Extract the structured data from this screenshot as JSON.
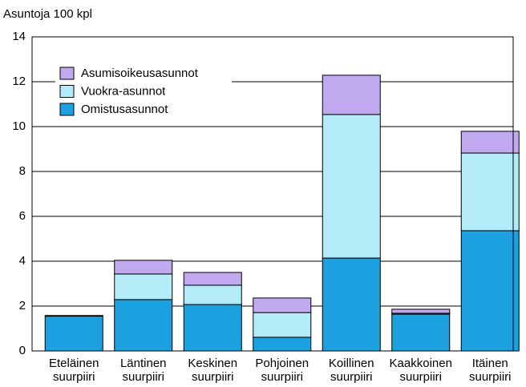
{
  "chart_data": {
    "type": "stacked_bar",
    "y_label": "Asuntoja 100 kpl",
    "categories": [
      "Eteläinen suurpiiri",
      "Läntinen suurpiiri",
      "Keskinen suurpiiri",
      "Pohjoinen suurpiiri",
      "Koillinen suurpiiri",
      "Kaakkoinen suurpiiri",
      "Itäinen suurpiiri"
    ],
    "series": [
      {
        "name": "Omistusasunnot",
        "color": "#1ba1e0",
        "values": [
          1.55,
          2.29,
          2.07,
          0.61,
          4.14,
          1.64,
          5.36
        ]
      },
      {
        "name": "Vuokra-asunnot",
        "color": "#b3ecf8",
        "values": [
          0.03,
          1.14,
          0.86,
          1.1,
          6.4,
          0.04,
          3.46
        ]
      },
      {
        "name": "Asumisoikeusasunnot",
        "color": "#c1a9f0",
        "values": [
          0,
          0.61,
          0.57,
          0.65,
          1.75,
          0.18,
          0.97
        ]
      }
    ],
    "ylim": [
      0,
      14
    ],
    "yticks": [
      0,
      2,
      4,
      6,
      8,
      10,
      12,
      14
    ],
    "grid": true,
    "legend": "upper left"
  }
}
